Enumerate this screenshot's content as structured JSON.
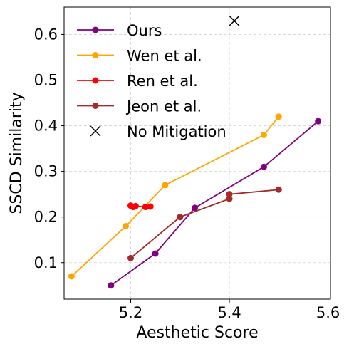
{
  "chart_data": {
    "type": "line",
    "title": "",
    "xlabel": "Aesthetic Score",
    "ylabel": "SSCD Similarity",
    "xlim": [
      5.065,
      5.605
    ],
    "ylim": [
      0.02,
      0.66
    ],
    "xticks": [
      5.2,
      5.4,
      5.6
    ],
    "xtick_labels": [
      "5.2",
      "5.4",
      "5.6"
    ],
    "yticks": [
      0.1,
      0.2,
      0.3,
      0.4,
      0.5,
      0.6
    ],
    "ytick_labels": [
      "0.1",
      "0.2",
      "0.3",
      "0.4",
      "0.5",
      "0.6"
    ],
    "grid": true,
    "legend_position": "upper-left",
    "series": [
      {
        "name": "Ours",
        "color": "#800080",
        "marker": "circle",
        "points": [
          [
            5.16,
            0.05
          ],
          [
            5.25,
            0.12
          ],
          [
            5.33,
            0.22
          ],
          [
            5.47,
            0.31
          ],
          [
            5.58,
            0.41
          ]
        ]
      },
      {
        "name": "Wen et al.",
        "color": "#FFA500",
        "marker": "circle",
        "points": [
          [
            5.08,
            0.07
          ],
          [
            5.19,
            0.18
          ],
          [
            5.27,
            0.27
          ],
          [
            5.47,
            0.38
          ],
          [
            5.5,
            0.42
          ]
        ]
      },
      {
        "name": "Ren et al.",
        "color": "#FF0000",
        "marker": "circle",
        "points": [
          [
            5.2,
            0.225
          ],
          [
            5.205,
            0.222
          ],
          [
            5.21,
            0.224
          ],
          [
            5.23,
            0.222
          ],
          [
            5.24,
            0.223
          ]
        ]
      },
      {
        "name": "Jeon et al.",
        "color": "#A52A2A",
        "marker": "circle",
        "points": [
          [
            5.2,
            0.11
          ],
          [
            5.3,
            0.2
          ],
          [
            5.4,
            0.24
          ],
          [
            5.4,
            0.25
          ],
          [
            5.5,
            0.26
          ]
        ]
      },
      {
        "name": "No Mitigation",
        "color": "#000000",
        "marker": "x",
        "points": [
          [
            5.41,
            0.63
          ]
        ]
      }
    ]
  }
}
